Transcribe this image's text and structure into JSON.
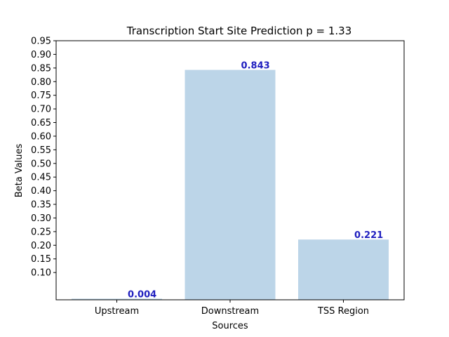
{
  "chart_data": {
    "type": "bar",
    "title": "Transcription Start Site Prediction p = 1.33",
    "xlabel": "Sources",
    "ylabel": "Beta Values",
    "categories": [
      "Upstream",
      "Downstream",
      "TSS Region"
    ],
    "values": [
      0.004,
      0.843,
      0.221
    ],
    "data_labels": [
      "0.004",
      "0.843",
      "0.221"
    ],
    "ylim": [
      0.0,
      0.95
    ],
    "yticks": [
      0.1,
      0.15,
      0.2,
      0.25,
      0.3,
      0.35,
      0.4,
      0.45,
      0.5,
      0.55,
      0.6,
      0.65,
      0.7,
      0.75,
      0.8,
      0.85,
      0.9,
      0.95
    ],
    "ytick_labels": [
      "0.10",
      "0.15",
      "0.20",
      "0.25",
      "0.30",
      "0.35",
      "0.40",
      "0.45",
      "0.50",
      "0.55",
      "0.60",
      "0.65",
      "0.70",
      "0.75",
      "0.80",
      "0.85",
      "0.90",
      "0.95"
    ],
    "grid": false,
    "legend": "none",
    "colors": {
      "bar": "#bcd5e8",
      "data_label": "#1f1fbf",
      "axis": "#000000"
    }
  }
}
